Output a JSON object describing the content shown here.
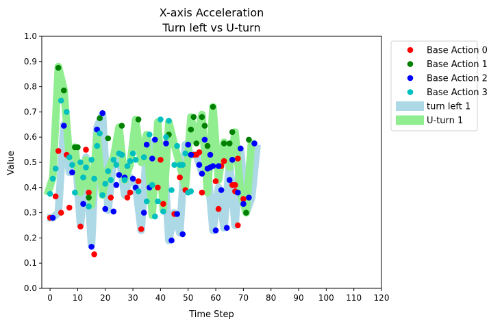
{
  "chart_data": {
    "type": "scatter",
    "title": "X-axis Acceleration",
    "subtitle": "Turn left vs U-turn",
    "xlabel": "Time Step",
    "ylabel": "Value",
    "xlim": [
      -3,
      120
    ],
    "ylim": [
      0.0,
      1.0
    ],
    "x_ticks": [
      "0",
      "10",
      "20",
      "30",
      "40",
      "50",
      "60",
      "70",
      "80",
      "90",
      "100",
      "110",
      "120"
    ],
    "y_ticks": [
      "0.0",
      "0.1",
      "0.2",
      "0.3",
      "0.4",
      "0.5",
      "0.6",
      "0.7",
      "0.8",
      "0.9",
      "1.0"
    ],
    "grid": false,
    "legend_position": "outside right, top",
    "bands": [
      {
        "name": "turn left 1",
        "color": "#add8e6",
        "x": [
          -1,
          1,
          3,
          5,
          7,
          9,
          11,
          13,
          15,
          17,
          19,
          21,
          23,
          25,
          27,
          29,
          31,
          33,
          35,
          37,
          39,
          41,
          43,
          45,
          47,
          49,
          51,
          53,
          55,
          57,
          59,
          61,
          63,
          65,
          67,
          69,
          71,
          73,
          75
        ],
        "y": [
          0.28,
          0.28,
          0.3,
          0.65,
          0.46,
          0.56,
          0.25,
          0.52,
          0.17,
          0.64,
          0.69,
          0.31,
          0.51,
          0.53,
          0.37,
          0.44,
          0.41,
          0.23,
          0.56,
          0.58,
          0.51,
          0.57,
          0.19,
          0.3,
          0.22,
          0.57,
          0.53,
          0.53,
          0.46,
          0.48,
          0.23,
          0.4,
          0.24,
          0.5,
          0.25,
          0.55,
          0.3,
          0.36,
          0.57
        ]
      },
      {
        "name": "U-turn 1",
        "color": "#90ee90",
        "x": [
          -1,
          1,
          3,
          5,
          7,
          9,
          11,
          13,
          15,
          17,
          19,
          21,
          23,
          25,
          27,
          29,
          31,
          33,
          35,
          37,
          39,
          41,
          43,
          45,
          47,
          49,
          51,
          53,
          55,
          57,
          59,
          61,
          63,
          65,
          67,
          69,
          71,
          73
        ],
        "y": [
          0.37,
          0.44,
          0.88,
          0.79,
          0.52,
          0.56,
          0.38,
          0.51,
          0.33,
          0.61,
          0.37,
          0.47,
          0.52,
          0.64,
          0.43,
          0.49,
          0.67,
          0.5,
          0.61,
          0.29,
          0.66,
          0.31,
          0.66,
          0.57,
          0.49,
          0.4,
          0.68,
          0.58,
          0.69,
          0.38,
          0.72,
          0.43,
          0.58,
          0.48,
          0.62,
          0.38,
          0.3,
          0.59
        ]
      }
    ],
    "series": [
      {
        "name": "Base Action 0",
        "color": "#ff0000",
        "points": [
          [
            0,
            0.28
          ],
          [
            2,
            0.365
          ],
          [
            3,
            0.545
          ],
          [
            4,
            0.3
          ],
          [
            6,
            0.53
          ],
          [
            7,
            0.32
          ],
          [
            11,
            0.245
          ],
          [
            13,
            0.55
          ],
          [
            14,
            0.38
          ],
          [
            16,
            0.135
          ],
          [
            22,
            0.36
          ],
          [
            28,
            0.36
          ],
          [
            29,
            0.38
          ],
          [
            32,
            0.425
          ],
          [
            33,
            0.235
          ],
          [
            39,
            0.4
          ],
          [
            40,
            0.51
          ],
          [
            41,
            0.335
          ],
          [
            45,
            0.295
          ],
          [
            47,
            0.44
          ],
          [
            49,
            0.39
          ],
          [
            52,
            0.53
          ],
          [
            53,
            0.53
          ],
          [
            54,
            0.54
          ],
          [
            55,
            0.38
          ],
          [
            60,
            0.425
          ],
          [
            61,
            0.315
          ],
          [
            62,
            0.485
          ],
          [
            63,
            0.505
          ],
          [
            66,
            0.41
          ],
          [
            67,
            0.41
          ],
          [
            67,
            0.385
          ],
          [
            68,
            0.25
          ],
          [
            68,
            0.515
          ],
          [
            70,
            0.355
          ]
        ]
      },
      {
        "name": "Base Action 1",
        "color": "#008000",
        "points": [
          [
            3,
            0.875
          ],
          [
            5,
            0.785
          ],
          [
            9,
            0.56
          ],
          [
            10,
            0.56
          ],
          [
            14,
            0.36
          ],
          [
            18,
            0.675
          ],
          [
            21,
            0.595
          ],
          [
            26,
            0.645
          ],
          [
            32,
            0.67
          ],
          [
            43,
            0.61
          ],
          [
            51,
            0.63
          ],
          [
            52,
            0.68
          ],
          [
            53,
            0.575
          ],
          [
            55,
            0.68
          ],
          [
            56,
            0.645
          ],
          [
            57,
            0.565
          ],
          [
            59,
            0.72
          ],
          [
            63,
            0.575
          ],
          [
            65,
            0.575
          ],
          [
            66,
            0.62
          ],
          [
            71,
            0.3
          ],
          [
            72,
            0.59
          ]
        ]
      },
      {
        "name": "Base Action 2",
        "color": "#0000ff",
        "points": [
          [
            1,
            0.28
          ],
          [
            5,
            0.645
          ],
          [
            8,
            0.46
          ],
          [
            12,
            0.335
          ],
          [
            15,
            0.165
          ],
          [
            17,
            0.63
          ],
          [
            19,
            0.695
          ],
          [
            20,
            0.315
          ],
          [
            23,
            0.305
          ],
          [
            24,
            0.41
          ],
          [
            25,
            0.45
          ],
          [
            26,
            0.53
          ],
          [
            27,
            0.44
          ],
          [
            30,
            0.435
          ],
          [
            31,
            0.4
          ],
          [
            34,
            0.3
          ],
          [
            35,
            0.57
          ],
          [
            36,
            0.4
          ],
          [
            37,
            0.515
          ],
          [
            38,
            0.59
          ],
          [
            42,
            0.575
          ],
          [
            44,
            0.19
          ],
          [
            46,
            0.295
          ],
          [
            48,
            0.215
          ],
          [
            50,
            0.57
          ],
          [
            51,
            0.53
          ],
          [
            54,
            0.49
          ],
          [
            55,
            0.455
          ],
          [
            56,
            0.59
          ],
          [
            57,
            0.475
          ],
          [
            58,
            0.48
          ],
          [
            58,
            0.53
          ],
          [
            59,
            0.485
          ],
          [
            60,
            0.23
          ],
          [
            61,
            0.485
          ],
          [
            62,
            0.39
          ],
          [
            64,
            0.24
          ],
          [
            65,
            0.43
          ],
          [
            66,
            0.51
          ],
          [
            68,
            0.38
          ],
          [
            69,
            0.555
          ],
          [
            70,
            0.335
          ],
          [
            72,
            0.36
          ],
          [
            74,
            0.575
          ]
        ]
      },
      {
        "name": "Base Action 3",
        "color": "#00bfbf",
        "points": [
          [
            0,
            0.375
          ],
          [
            1,
            0.435
          ],
          [
            2,
            0.475
          ],
          [
            4,
            0.745
          ],
          [
            6,
            0.7
          ],
          [
            7,
            0.52
          ],
          [
            8,
            0.49
          ],
          [
            9,
            0.38
          ],
          [
            11,
            0.5
          ],
          [
            12,
            0.44
          ],
          [
            13,
            0.48
          ],
          [
            14,
            0.325
          ],
          [
            15,
            0.51
          ],
          [
            16,
            0.435
          ],
          [
            17,
            0.565
          ],
          [
            18,
            0.615
          ],
          [
            19,
            0.37
          ],
          [
            20,
            0.415
          ],
          [
            21,
            0.465
          ],
          [
            22,
            0.43
          ],
          [
            23,
            0.51
          ],
          [
            24,
            0.49
          ],
          [
            25,
            0.535
          ],
          [
            26,
            0.53
          ],
          [
            27,
            0.43
          ],
          [
            28,
            0.485
          ],
          [
            29,
            0.505
          ],
          [
            30,
            0.535
          ],
          [
            31,
            0.51
          ],
          [
            32,
            0.385
          ],
          [
            34,
            0.52
          ],
          [
            35,
            0.345
          ],
          [
            36,
            0.61
          ],
          [
            37,
            0.41
          ],
          [
            38,
            0.285
          ],
          [
            39,
            0.345
          ],
          [
            40,
            0.67
          ],
          [
            41,
            0.305
          ],
          [
            42,
            0.6
          ],
          [
            43,
            0.665
          ],
          [
            44,
            0.39
          ],
          [
            45,
            0.49
          ],
          [
            46,
            0.565
          ],
          [
            47,
            0.49
          ],
          [
            48,
            0.49
          ],
          [
            49,
            0.535
          ],
          [
            50,
            0.38
          ],
          [
            51,
            0.385
          ]
        ]
      }
    ]
  },
  "legend": [
    {
      "label": "Base Action 0",
      "kind": "marker",
      "color": "#ff0000"
    },
    {
      "label": "Base Action 1",
      "kind": "marker",
      "color": "#008000"
    },
    {
      "label": "Base Action 2",
      "kind": "marker",
      "color": "#0000ff"
    },
    {
      "label": "Base Action 3",
      "kind": "marker",
      "color": "#00bfbf"
    },
    {
      "label": "turn left 1",
      "kind": "band",
      "color": "#add8e6"
    },
    {
      "label": "U-turn 1",
      "kind": "band",
      "color": "#90ee90"
    }
  ]
}
